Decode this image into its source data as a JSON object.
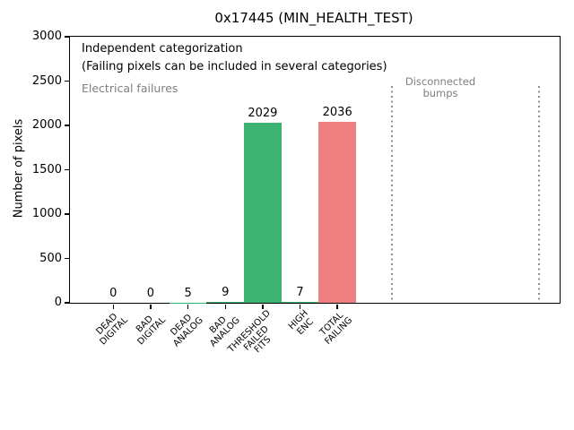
{
  "chart_data": {
    "type": "bar",
    "title": "0x17445 (MIN_HEALTH_TEST)",
    "ylabel": "Number of pixels",
    "xlabel": "",
    "ylim": [
      0,
      3000
    ],
    "yticks": [
      0,
      500,
      1000,
      1500,
      2000,
      2500,
      3000
    ],
    "categories": [
      "DEAD\nDIGITAL",
      "BAD\nDIGITAL",
      "DEAD\nANALOG",
      "BAD\nANALOG",
      "THRESHOLD\nFAILED\nFITS",
      "HIGH\nENC",
      "TOTAL\nFAILING"
    ],
    "values": [
      0,
      0,
      5,
      9,
      2029,
      7,
      2036
    ],
    "bar_value_labels": [
      "0",
      "0",
      "5",
      "9",
      "2029",
      "7",
      "2036"
    ],
    "bar_colors": [
      "#3cb371",
      "#3cb371",
      "#3cb371",
      "#3cb371",
      "#3cb371",
      "#3cb371",
      "#f08080"
    ],
    "grid": false,
    "legend": null,
    "annotations": {
      "independent": "Independent categorization",
      "failing_note": "(Failing pixels can be included in several categories)",
      "electrical": "Electrical failures",
      "disconnected": "Disconnected\nbumps"
    },
    "colors": {
      "bar_green": "#3cb371",
      "bar_red": "#f08080",
      "gray_text": "#7f7f7f",
      "dotted_line": "#8f8f8f"
    }
  }
}
